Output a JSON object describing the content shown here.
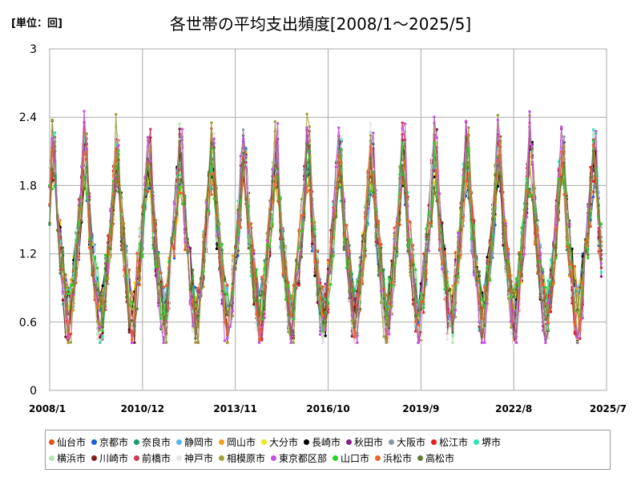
{
  "chart_data": {
    "type": "line",
    "title": "各世帯の平均支出頻度[2008/1～2025/5]",
    "unit_label": "[単位：回]",
    "ylim": [
      0,
      3
    ],
    "yticks": [
      "0",
      "0.6",
      "1.2",
      "1.8",
      "2.4",
      "3"
    ],
    "ytick_values": [
      0,
      0.6,
      1.2,
      1.8,
      2.4,
      3
    ],
    "xlim": [
      "2008/1",
      "2025/7"
    ],
    "xticks": [
      "2008/1",
      "2010/12",
      "2013/11",
      "2016/10",
      "2019/9",
      "2022/8",
      "2025/7"
    ],
    "x_start": "2008/1",
    "x_end": "2025/5",
    "grid": true,
    "legend_position": "bottom",
    "pattern": {
      "peak_months": [
        1,
        2,
        3
      ],
      "trough_months": [
        7,
        8,
        9
      ],
      "typical_range": [
        0.6,
        2.1
      ]
    },
    "series": [
      {
        "name": "仙台市",
        "color": "#e8501e"
      },
      {
        "name": "京都市",
        "color": "#1f5fd8"
      },
      {
        "name": "奈良市",
        "color": "#1e9b6e"
      },
      {
        "name": "静岡市",
        "color": "#5ab4e6"
      },
      {
        "name": "岡山市",
        "color": "#f0a01e"
      },
      {
        "name": "大分市",
        "color": "#f0e614"
      },
      {
        "name": "長崎市",
        "color": "#000000"
      },
      {
        "name": "秋田市",
        "color": "#8c1e8c"
      },
      {
        "name": "大阪市",
        "color": "#8296aa"
      },
      {
        "name": "松江市",
        "color": "#e61e1e"
      },
      {
        "name": "堺市",
        "color": "#2ee6b4"
      },
      {
        "name": "横浜市",
        "color": "#b4e6b4"
      },
      {
        "name": "川崎市",
        "color": "#821e1e"
      },
      {
        "name": "前橋市",
        "color": "#c83c50"
      },
      {
        "name": "神戸市",
        "color": "#e6e6e6"
      },
      {
        "name": "相模原市",
        "color": "#a0a03c"
      },
      {
        "name": "東京都区部",
        "color": "#c850e6"
      },
      {
        "name": "山口市",
        "color": "#28d228"
      },
      {
        "name": "浜松市",
        "color": "#f06428"
      },
      {
        "name": "高松市",
        "color": "#647832"
      }
    ]
  }
}
